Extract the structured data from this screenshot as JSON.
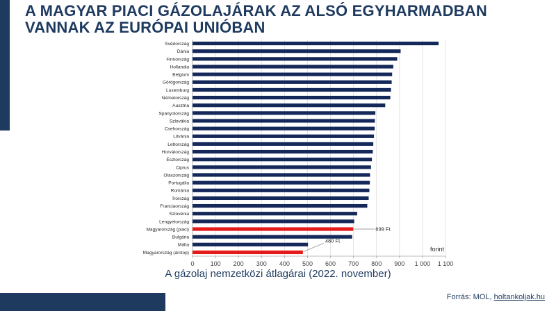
{
  "header": {
    "title": "A MAGYAR PIACI GÁZOLAJÁRAK AZ ALSÓ EGYHARMADBAN VANNAK AZ EURÓPAI UNIÓBAN"
  },
  "footer": {
    "source_prefix": "Forrás: MOL, ",
    "source_link": "holtankoljak.hu"
  },
  "colors": {
    "bar": "#14285a",
    "highlight": "#e51b1b",
    "brand": "#1e3a5f"
  },
  "chart_data": {
    "type": "bar",
    "orientation": "horizontal",
    "title": "A gázolaj nemzetközi átlagárai (2022. november)",
    "xlabel": "forint",
    "xlim": [
      0,
      1100
    ],
    "xticks": [
      0,
      100,
      200,
      300,
      400,
      500,
      600,
      700,
      800,
      900,
      1000,
      1100
    ],
    "xtick_labels": [
      "0",
      "100",
      "200",
      "300",
      "400",
      "500",
      "600",
      "700",
      "800",
      "900",
      "1 000",
      "1 100"
    ],
    "grid": true,
    "categories": [
      "Svédország",
      "Dánia",
      "Finnország",
      "Hollandia",
      "Belgium",
      "Görögország",
      "Luxemburg",
      "Németország",
      "Ausztria",
      "Spanyolország",
      "Szlovákia",
      "Csehország",
      "Litvánia",
      "Lettország",
      "Horvátország",
      "Észtország",
      "Ciprus",
      "Olaszország",
      "Portugália",
      "Románia",
      "Írország",
      "Franciaország",
      "Szlovénia",
      "Lengyelország",
      "Magyarország (piaci)",
      "Bulgária",
      "Málta",
      "Magyarország (árstop)"
    ],
    "values": [
      1070,
      905,
      890,
      873,
      868,
      866,
      863,
      860,
      838,
      795,
      793,
      792,
      789,
      786,
      784,
      780,
      776,
      772,
      771,
      769,
      766,
      760,
      716,
      703,
      699,
      694,
      502,
      480
    ],
    "highlighted": [
      "Magyarország (piaci)",
      "Magyarország (árstop)"
    ],
    "annotations": [
      {
        "category": "Magyarország (piaci)",
        "text": "699 Ft"
      },
      {
        "category": "Magyarország (árstop)",
        "text": "480 Ft"
      }
    ]
  }
}
